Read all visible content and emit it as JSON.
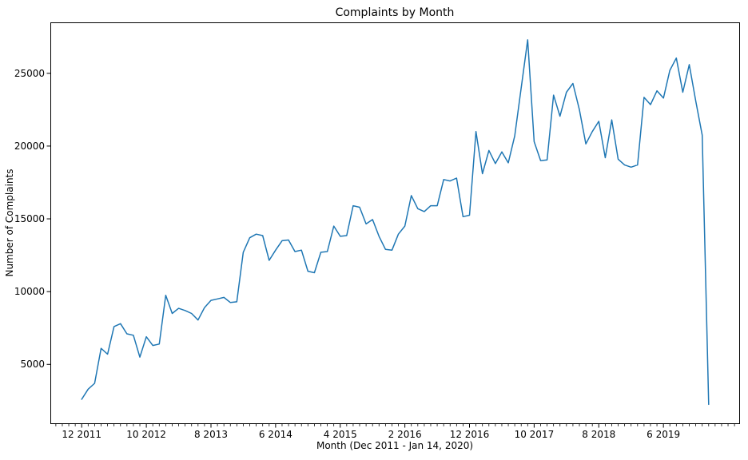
{
  "chart_data": {
    "type": "line",
    "title": "Complaints by Month",
    "xlabel": "Month (Dec 2011 - Jan 14, 2020)",
    "ylabel": "Number of Complaints",
    "line_color": "#1f77b4",
    "background_color": "#ffffff",
    "grid": false,
    "legend": "none",
    "ylim": [
      900,
      28500
    ],
    "xlim": [
      -4.85,
      101.85
    ],
    "yticks": [
      5000,
      10000,
      15000,
      20000,
      25000
    ],
    "x_major_ticks": [
      {
        "index": 0,
        "label": "12 2011"
      },
      {
        "index": 10,
        "label": "10 2012"
      },
      {
        "index": 20,
        "label": "8 2013"
      },
      {
        "index": 30,
        "label": "6 2014"
      },
      {
        "index": 40,
        "label": "4 2015"
      },
      {
        "index": 50,
        "label": "2 2016"
      },
      {
        "index": 60,
        "label": "12 2016"
      },
      {
        "index": 70,
        "label": "10 2017"
      },
      {
        "index": 80,
        "label": "8 2018"
      },
      {
        "index": 90,
        "label": "6 2019"
      }
    ],
    "x_minor_tick_range": [
      -4,
      101
    ],
    "categories": [
      "12 2011",
      "1 2012",
      "2 2012",
      "3 2012",
      "4 2012",
      "5 2012",
      "6 2012",
      "7 2012",
      "8 2012",
      "9 2012",
      "10 2012",
      "11 2012",
      "12 2012",
      "1 2013",
      "2 2013",
      "3 2013",
      "4 2013",
      "5 2013",
      "6 2013",
      "7 2013",
      "8 2013",
      "9 2013",
      "10 2013",
      "11 2013",
      "12 2013",
      "1 2014",
      "2 2014",
      "3 2014",
      "4 2014",
      "5 2014",
      "6 2014",
      "7 2014",
      "8 2014",
      "9 2014",
      "10 2014",
      "11 2014",
      "12 2014",
      "1 2015",
      "2 2015",
      "3 2015",
      "4 2015",
      "5 2015",
      "6 2015",
      "7 2015",
      "8 2015",
      "9 2015",
      "10 2015",
      "11 2015",
      "12 2015",
      "1 2016",
      "2 2016",
      "3 2016",
      "4 2016",
      "5 2016",
      "6 2016",
      "7 2016",
      "8 2016",
      "9 2016",
      "10 2016",
      "11 2016",
      "12 2016",
      "1 2017",
      "2 2017",
      "3 2017",
      "4 2017",
      "5 2017",
      "6 2017",
      "7 2017",
      "8 2017",
      "9 2017",
      "10 2017",
      "11 2017",
      "12 2017",
      "1 2018",
      "2 2018",
      "3 2018",
      "4 2018",
      "5 2018",
      "6 2018",
      "7 2018",
      "8 2018",
      "9 2018",
      "10 2018",
      "11 2018",
      "12 2018",
      "1 2019",
      "2 2019",
      "3 2019",
      "4 2019",
      "5 2019",
      "6 2019",
      "7 2019",
      "8 2019",
      "9 2019",
      "10 2019",
      "11 2019",
      "12 2019",
      "1 2020"
    ],
    "values": [
      2600,
      3300,
      3700,
      6100,
      5700,
      7600,
      7800,
      7100,
      7000,
      5500,
      6900,
      6300,
      6400,
      9750,
      8500,
      8850,
      8700,
      8500,
      8050,
      8900,
      9400,
      9500,
      9600,
      9250,
      9300,
      12700,
      13700,
      13950,
      13850,
      12150,
      12850,
      13500,
      13550,
      12750,
      12850,
      11400,
      11300,
      12700,
      12750,
      14500,
      13800,
      13850,
      15900,
      15800,
      14650,
      14950,
      13800,
      12900,
      12850,
      13950,
      14500,
      16600,
      15700,
      15500,
      15900,
      15900,
      17700,
      17600,
      17800,
      15150,
      15250,
      21000,
      18100,
      19700,
      18800,
      19600,
      18850,
      20700,
      24000,
      27300,
      20300,
      19000,
      19050,
      23500,
      22050,
      23700,
      24300,
      22500,
      20150,
      21000,
      21700,
      19200,
      21800,
      19100,
      18700,
      18550,
      18700,
      23350,
      22850,
      23800,
      23300,
      25200,
      26050,
      23700,
      25600,
      23100,
      20750,
      2250
    ]
  }
}
